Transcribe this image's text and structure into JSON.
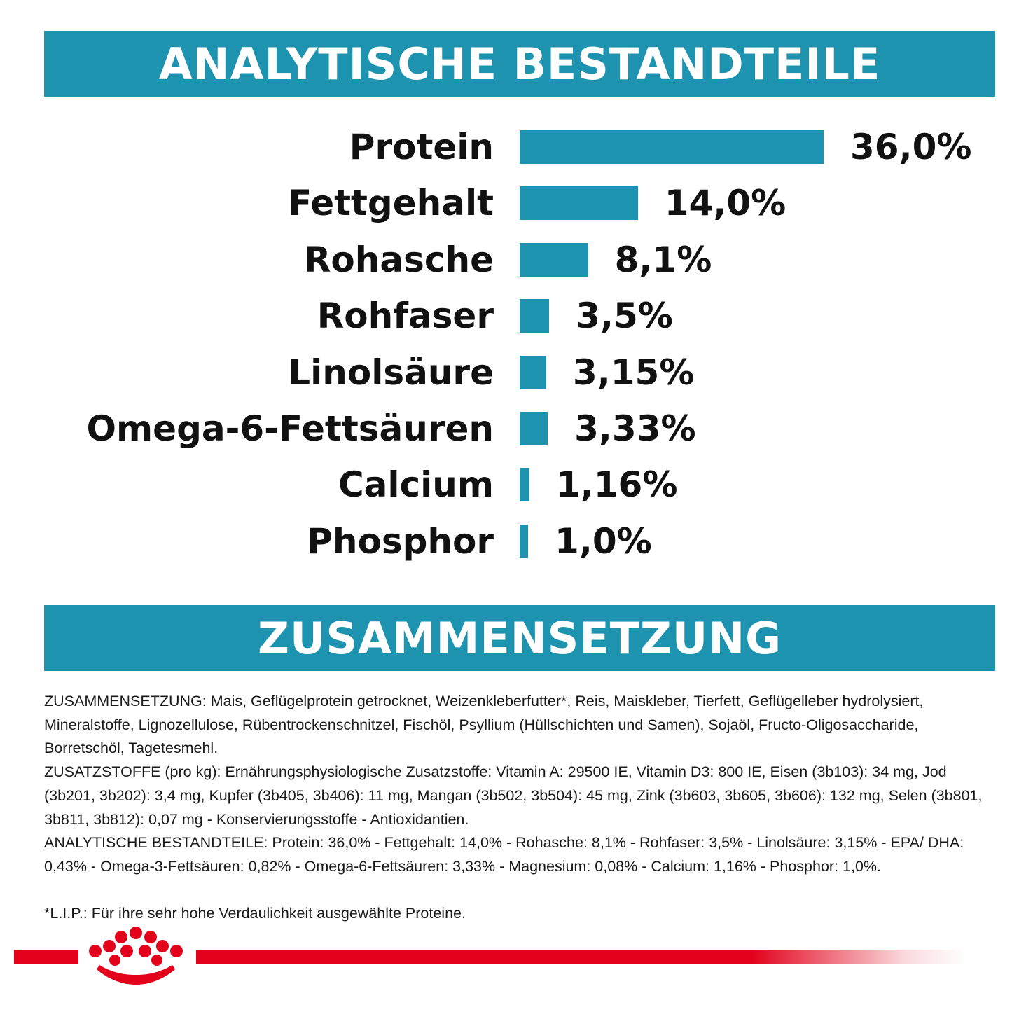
{
  "colors": {
    "accent": "#1d93b0",
    "brand_red": "#e2001a",
    "text": "#111111"
  },
  "header_top": {
    "title": "ANALYTISCHE BESTANDTEILE"
  },
  "header_bottom": {
    "title": "ZUSAMMENSETZUNG"
  },
  "chart_data": {
    "type": "bar",
    "orientation": "horizontal",
    "title": "",
    "categories": [
      "Protein",
      "Fettgehalt",
      "Rohasche",
      "Rohfaser",
      "Linolsäure",
      "Omega-6-Fettsäuren",
      "Calcium",
      "Phosphor"
    ],
    "values": [
      36.0,
      14.0,
      8.1,
      3.5,
      3.15,
      3.33,
      1.16,
      1.0
    ],
    "value_labels": [
      "36,0%",
      "14,0%",
      "8,1%",
      "3,5%",
      "3,15%",
      "3,33%",
      "1,16%",
      "1,0%"
    ],
    "unit": "%",
    "grid": false,
    "axes_visible": false
  },
  "composition": {
    "paragraphs": [
      "ZUSAMMENSETZUNG: Mais, Geflügelprotein getrocknet, Weizenkleberfutter*, Reis, Maiskleber, Tierfett, Geflügelleber hydrolysiert, Mineralstoffe, Lignozellulose, Rübentrockenschnitzel, Fischöl, Psyllium (Hüllschichten und Samen), Sojaöl, Fructo-Oligosaccharide, Borretschöl, Tagetesmehl.",
      "ZUSATZSTOFFE (pro kg): Ernährungsphysiologische Zusatzstoffe: Vitamin A: 29500 IE, Vitamin D3: 800 IE, Eisen (3b103): 34 mg, Jod (3b201, 3b202): 3,4 mg, Kupfer (3b405, 3b406): 11 mg, Mangan (3b502, 3b504): 45 mg, Zink (3b603, 3b605, 3b606): 132 mg, Selen (3b801, 3b811, 3b812): 0,07 mg - Konservierungsstoffe - Antioxidantien.",
      "ANALYTISCHE BESTANDTEILE: Protein: 36,0% - Fettgehalt: 14,0% - Rohasche: 8,1% - Rohfaser: 3,5% - Linolsäure: 3,15% - EPA/ DHA: 0,43% - Omega-3-Fettsäuren: 0,82% - Omega-6-Fettsäuren: 3,33% - Magnesium: 0,08% - Calcium: 1,16% - Phosphor: 1,0%."
    ],
    "footnote": "*L.I.P.: Für ihre sehr hohe Verdaulichkeit ausgewählte Proteine."
  },
  "logo": {
    "icon": "crown-icon"
  }
}
